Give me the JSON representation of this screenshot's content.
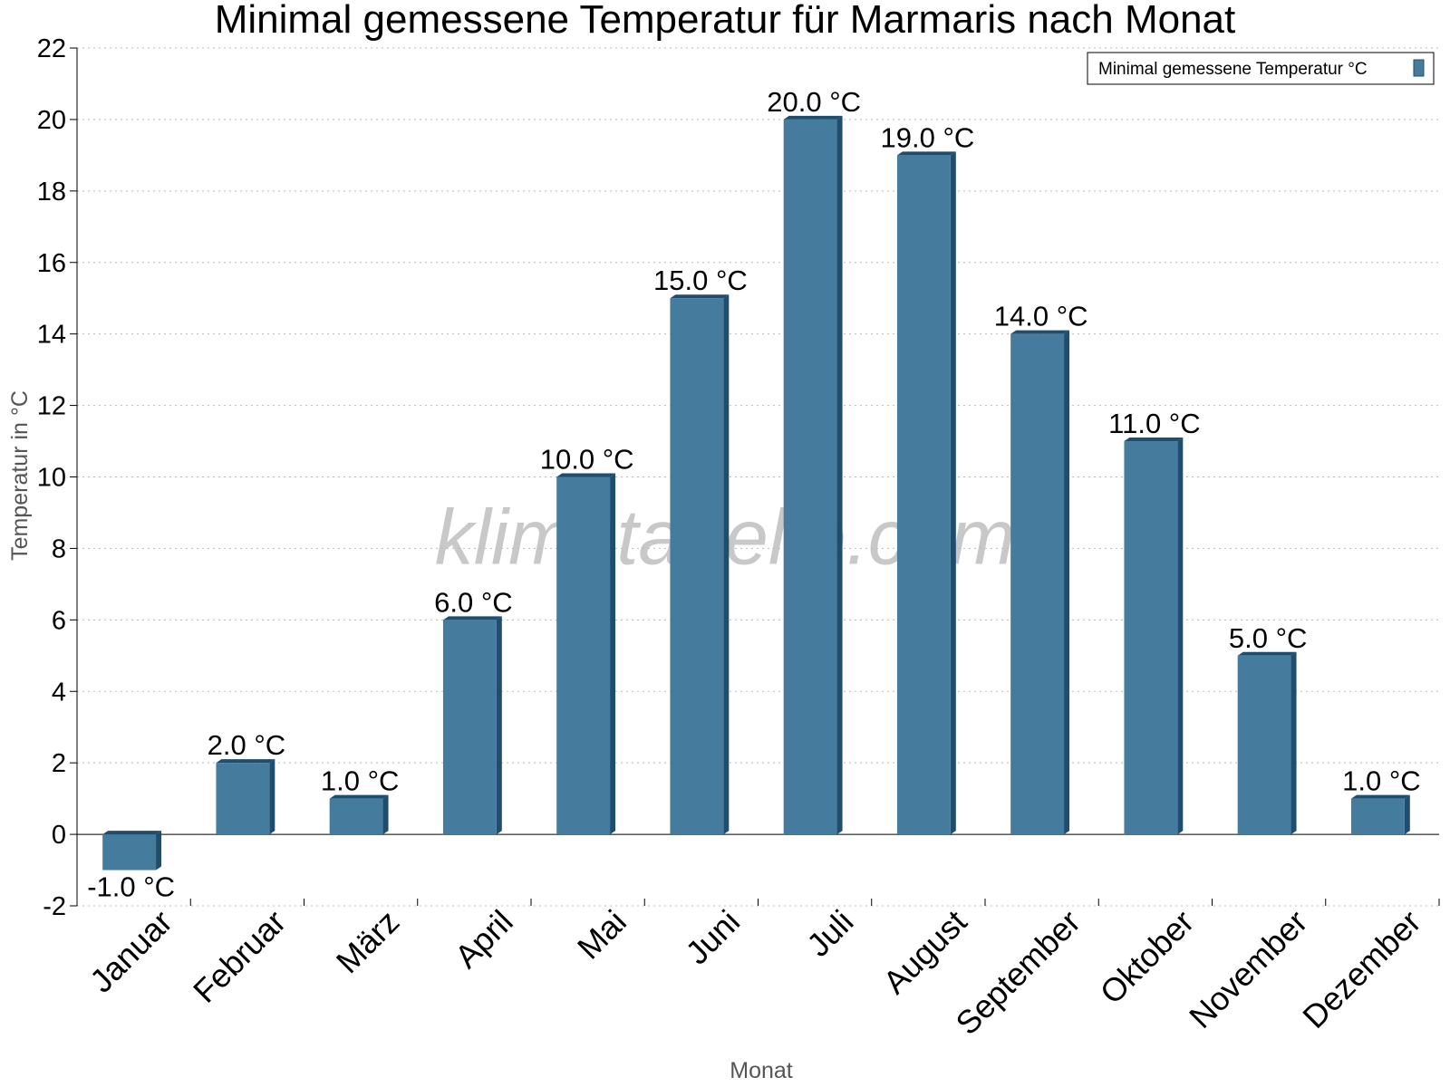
{
  "chart_data": {
    "type": "bar",
    "title": "Minimal gemessene Temperatur für Marmaris nach Monat",
    "xlabel": "Monat",
    "ylabel": "Temperatur in °C",
    "categories": [
      "Januar",
      "Februar",
      "März",
      "April",
      "Mai",
      "Juni",
      "Juli",
      "August",
      "September",
      "Oktober",
      "November",
      "Dezember"
    ],
    "series": [
      {
        "name": "Minimal gemessene Temperatur °C",
        "values": [
          -1.0,
          2.0,
          1.0,
          6.0,
          10.0,
          15.0,
          20.0,
          19.0,
          14.0,
          11.0,
          5.0,
          1.0
        ],
        "data_labels": [
          "-1.0 °C",
          "2.0 °C",
          "1.0 °C",
          "6.0 °C",
          "10.0 °C",
          "15.0 °C",
          "20.0 °C",
          "19.0 °C",
          "14.0 °C",
          "11.0 °C",
          "5.0 °C",
          "1.0 °C"
        ],
        "color": "#457b9d"
      }
    ],
    "ylim": [
      -2,
      22
    ],
    "yticks": [
      -2,
      0,
      2,
      4,
      6,
      8,
      10,
      12,
      14,
      16,
      18,
      20,
      22
    ],
    "ytick_labels": [
      "-2",
      "0",
      "2",
      "4",
      "6",
      "8",
      "10",
      "12",
      "14",
      "16",
      "18",
      "20",
      "22"
    ],
    "grid": true,
    "legend_position": "top-right",
    "watermark": "klimatabelle.com",
    "colors": {
      "bar": "#457b9d",
      "bar_side": "#1e4d6e",
      "grid": "#bbbbbb",
      "axis": "#000000"
    }
  }
}
